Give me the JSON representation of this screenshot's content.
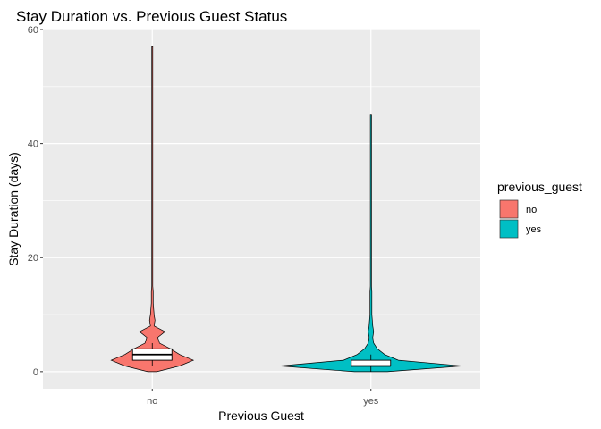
{
  "chart_data": {
    "type": "violin",
    "title": "Stay Duration vs. Previous Guest Status",
    "xlabel": "Previous Guest",
    "ylabel": "Stay Duration (days)",
    "categories": [
      "no",
      "yes"
    ],
    "ylim": [
      -3,
      60
    ],
    "yticks": [
      0,
      20,
      40,
      60
    ],
    "grid": true,
    "legend": {
      "title": "previous_guest",
      "placement": "right",
      "entries": [
        "no",
        "yes"
      ]
    },
    "colors": {
      "no": "#F8766D",
      "yes": "#00BFC4"
    },
    "series": [
      {
        "name": "no",
        "min": 0,
        "max": 57,
        "density": [
          [
            0,
            0.05
          ],
          [
            1,
            0.3
          ],
          [
            2,
            0.45
          ],
          [
            3,
            0.3
          ],
          [
            4,
            0.2
          ],
          [
            5,
            0.08
          ],
          [
            6,
            0.06
          ],
          [
            7,
            0.14
          ],
          [
            8,
            0.02
          ],
          [
            9,
            0.03
          ],
          [
            10,
            0.02
          ],
          [
            11,
            0.015
          ],
          [
            12,
            0.01
          ],
          [
            13,
            0.01
          ],
          [
            14,
            0.01
          ],
          [
            15,
            0.0
          ],
          [
            57,
            0.0
          ]
        ],
        "box": {
          "q1": 2,
          "median": 3,
          "q3": 4,
          "whisker_low": 1,
          "whisker_high": 5
        }
      },
      {
        "name": "yes",
        "min": 0,
        "max": 45,
        "density": [
          [
            0,
            0.18
          ],
          [
            1,
            1.0
          ],
          [
            2,
            0.3
          ],
          [
            3,
            0.15
          ],
          [
            4,
            0.07
          ],
          [
            5,
            0.03
          ],
          [
            6,
            0.02
          ],
          [
            7,
            0.03
          ],
          [
            8,
            0.02
          ],
          [
            9,
            0.015
          ],
          [
            10,
            0.01
          ],
          [
            11,
            0.01
          ],
          [
            12,
            0.01
          ],
          [
            13,
            0.01
          ],
          [
            14,
            0.01
          ],
          [
            15,
            0.0
          ],
          [
            45,
            0.0
          ]
        ],
        "box": {
          "q1": 1,
          "median": 1,
          "q3": 2,
          "whisker_low": 0,
          "whisker_high": 3
        }
      }
    ]
  }
}
